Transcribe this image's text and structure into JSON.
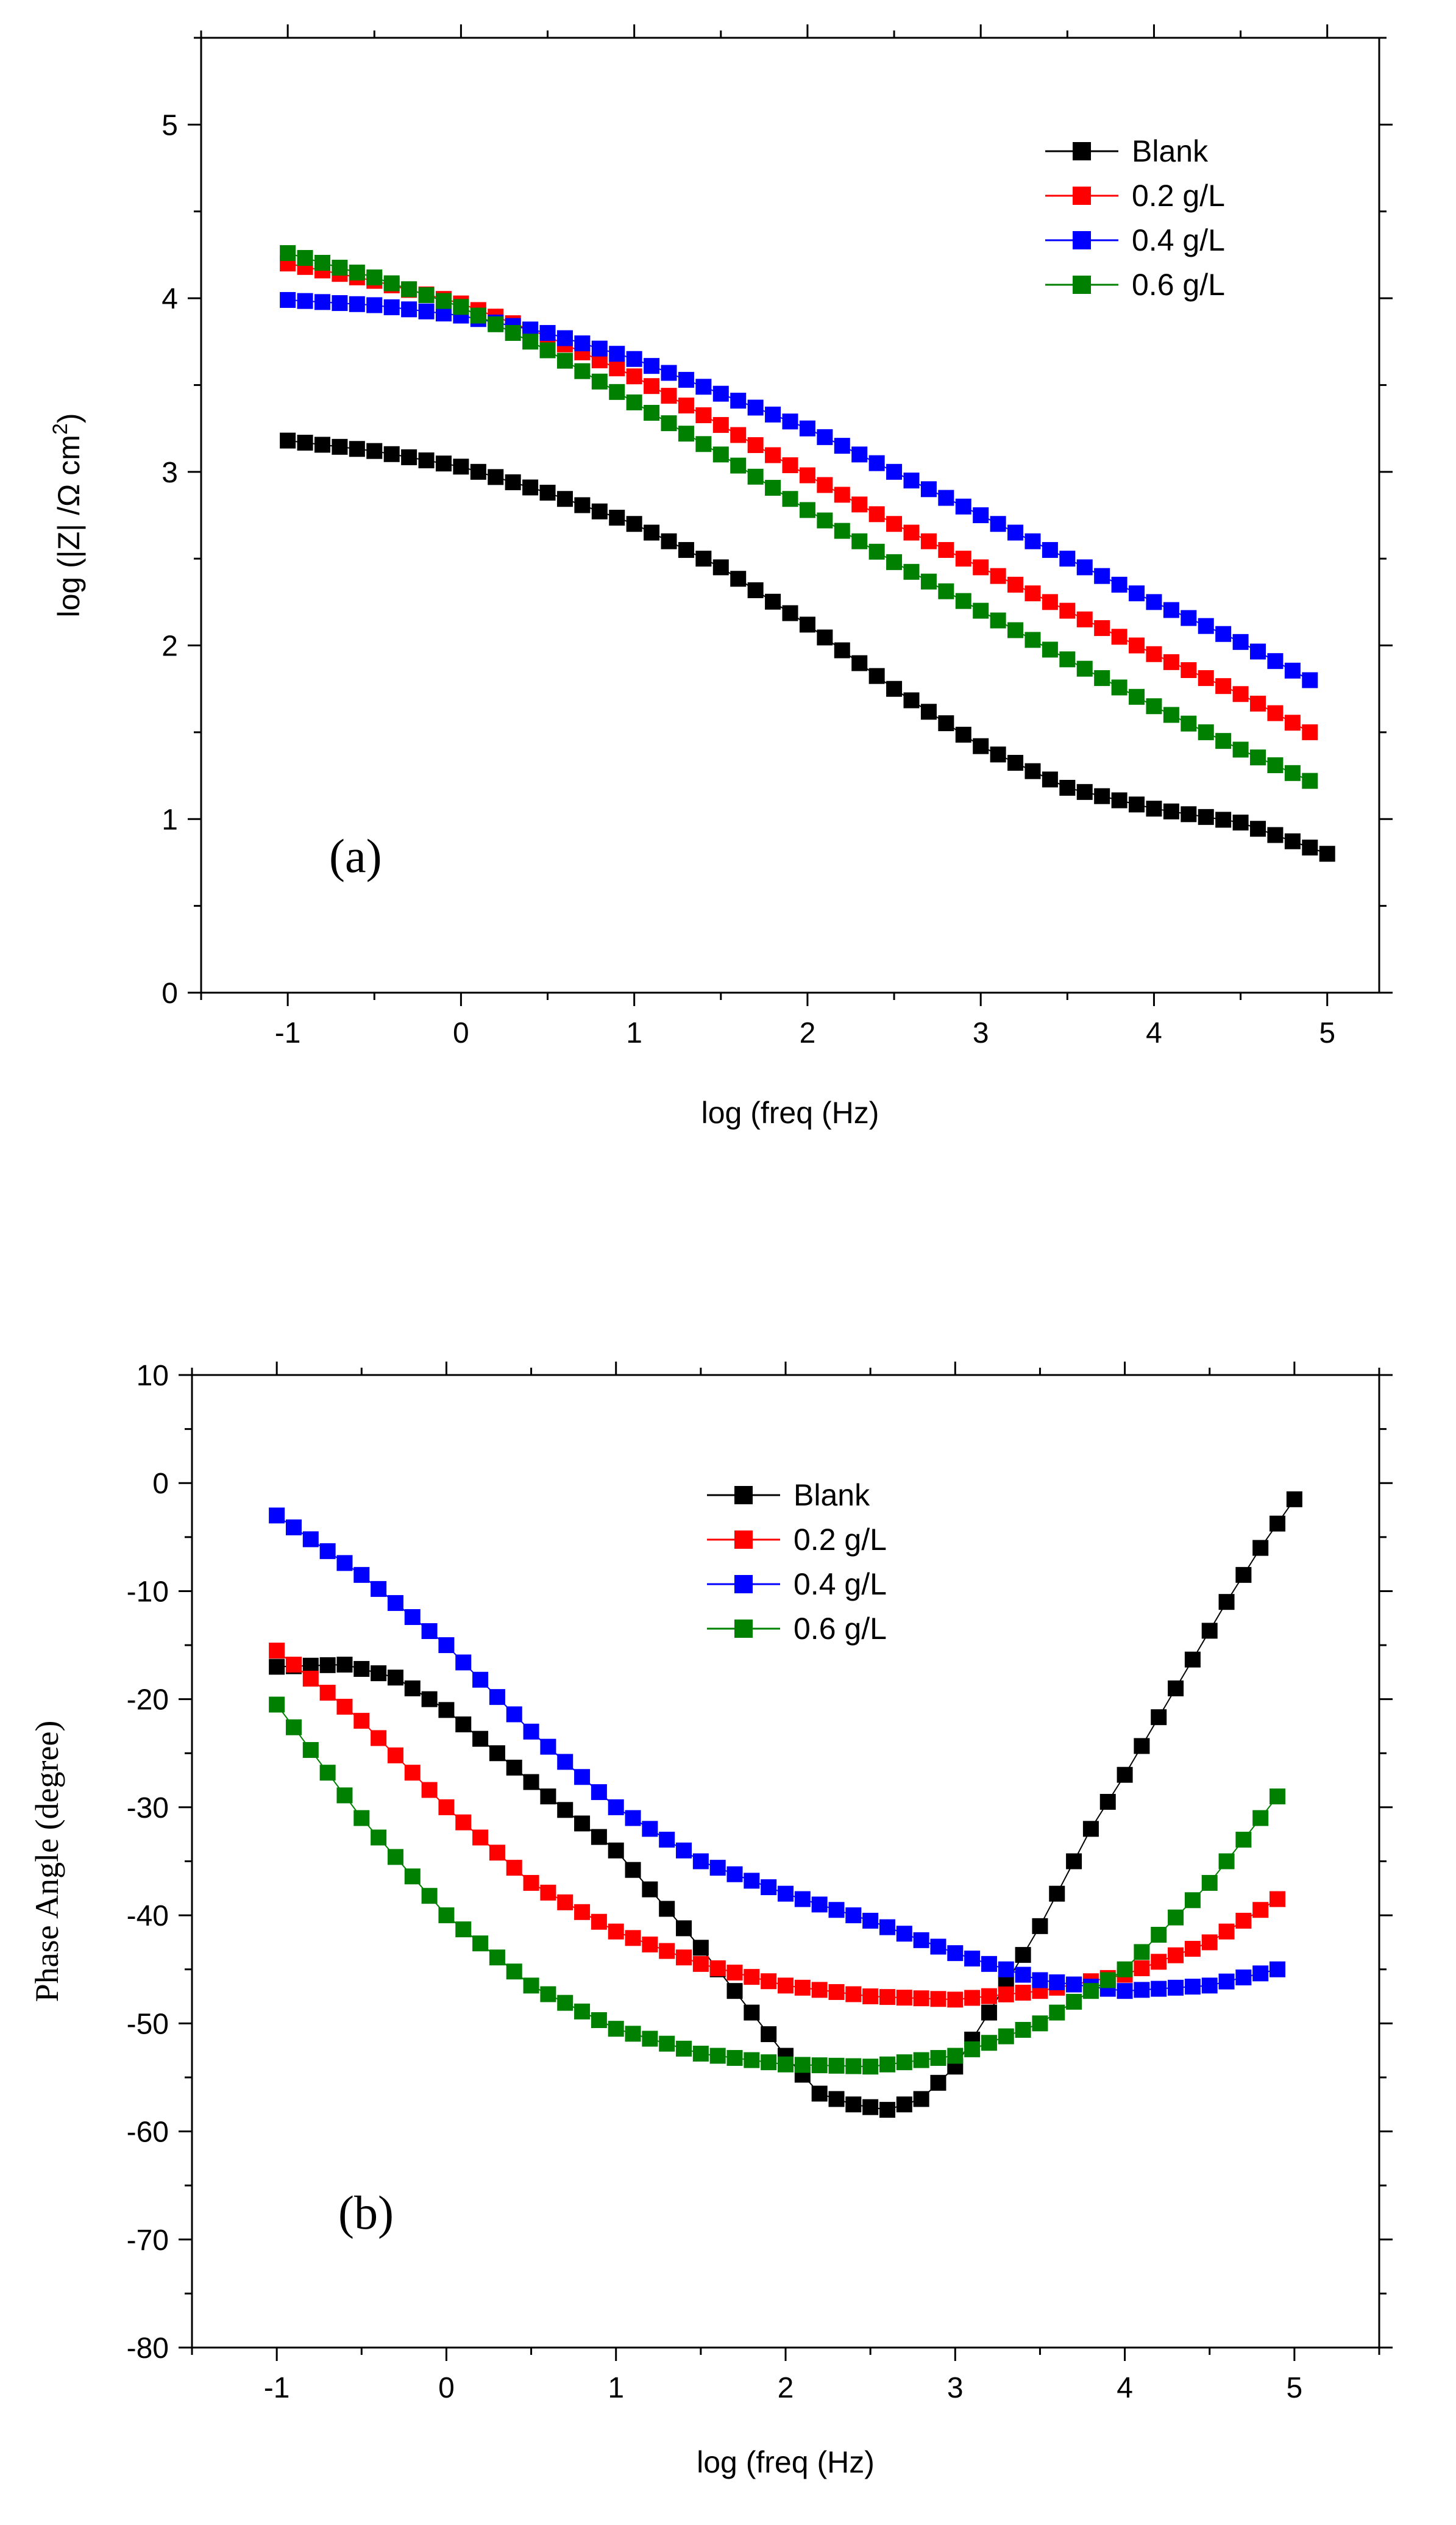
{
  "chart_data": [
    {
      "type": "scatter",
      "panel_label": "(a)",
      "xlabel": "log (freq (Hz)",
      "ylabel": "log (|Z| /Ω cm",
      "ylabel_sup": "2",
      "ylabel_end": ")",
      "xlim": [
        -1.5,
        5.3
      ],
      "ylim": [
        0,
        5.5
      ],
      "xticks": [
        -1,
        0,
        1,
        2,
        3,
        4,
        5
      ],
      "yticks": [
        0,
        1,
        2,
        3,
        4,
        5
      ],
      "xtick_labels": [
        "-1",
        "0",
        "1",
        "2",
        "3",
        "4",
        "5"
      ],
      "ytick_labels": [
        "0",
        "1",
        "2",
        "3",
        "4",
        "5"
      ],
      "legend_position": "top-right",
      "series": [
        {
          "name": "Blank",
          "color": "#000000",
          "points": [
            [
              -1.0,
              3.18
            ],
            [
              -0.5,
              3.12
            ],
            [
              0.0,
              3.03
            ],
            [
              0.5,
              2.88
            ],
            [
              1.0,
              2.7
            ],
            [
              1.5,
              2.45
            ],
            [
              2.0,
              2.12
            ],
            [
              2.5,
              1.75
            ],
            [
              3.0,
              1.42
            ],
            [
              3.5,
              1.18
            ],
            [
              4.0,
              1.06
            ],
            [
              4.5,
              0.98
            ],
            [
              5.0,
              0.8
            ]
          ]
        },
        {
          "name": "0.2 g/L",
          "color": "#ff0000",
          "points": [
            [
              -1.0,
              4.2
            ],
            [
              -0.5,
              4.1
            ],
            [
              0.0,
              3.97
            ],
            [
              0.5,
              3.78
            ],
            [
              1.0,
              3.55
            ],
            [
              1.5,
              3.27
            ],
            [
              2.0,
              2.98
            ],
            [
              2.5,
              2.7
            ],
            [
              3.0,
              2.45
            ],
            [
              3.5,
              2.2
            ],
            [
              4.0,
              1.95
            ],
            [
              4.5,
              1.72
            ],
            [
              4.9,
              1.5
            ]
          ]
        },
        {
          "name": "0.4 g/L",
          "color": "#0000ff",
          "points": [
            [
              -1.0,
              3.99
            ],
            [
              -0.5,
              3.96
            ],
            [
              0.0,
              3.9
            ],
            [
              0.5,
              3.8
            ],
            [
              1.0,
              3.65
            ],
            [
              1.5,
              3.45
            ],
            [
              2.0,
              3.25
            ],
            [
              2.5,
              3.0
            ],
            [
              3.0,
              2.75
            ],
            [
              3.5,
              2.5
            ],
            [
              4.0,
              2.25
            ],
            [
              4.5,
              2.02
            ],
            [
              4.9,
              1.8
            ]
          ]
        },
        {
          "name": "0.6 g/L",
          "color": "#008000",
          "points": [
            [
              -1.0,
              4.26
            ],
            [
              -0.5,
              4.12
            ],
            [
              0.0,
              3.95
            ],
            [
              0.5,
              3.7
            ],
            [
              1.0,
              3.4
            ],
            [
              1.5,
              3.1
            ],
            [
              2.0,
              2.78
            ],
            [
              2.5,
              2.48
            ],
            [
              3.0,
              2.2
            ],
            [
              3.5,
              1.92
            ],
            [
              4.0,
              1.65
            ],
            [
              4.5,
              1.4
            ],
            [
              4.9,
              1.22
            ]
          ]
        }
      ]
    },
    {
      "type": "scatter",
      "panel_label": "(b)",
      "xlabel": "log (freq (Hz)",
      "ylabel": "Phase Angle (degree)",
      "xlim": [
        -1.5,
        5.5
      ],
      "ylim": [
        -80,
        10
      ],
      "xticks": [
        -1,
        0,
        1,
        2,
        3,
        4,
        5
      ],
      "yticks": [
        10,
        0,
        -10,
        -20,
        -30,
        -40,
        -50,
        -60,
        -70,
        -80
      ],
      "xtick_labels": [
        "-1",
        "0",
        "1",
        "2",
        "3",
        "4",
        "5"
      ],
      "ytick_labels": [
        "10",
        "0",
        "-10",
        "-20",
        "-30",
        "-40",
        "-50",
        "-60",
        "-70",
        "-80"
      ],
      "legend_position": "top-center",
      "series": [
        {
          "name": "Blank",
          "color": "#000000",
          "points": [
            [
              -1.0,
              -17.0
            ],
            [
              -0.6,
              -16.8
            ],
            [
              -0.3,
              -18.0
            ],
            [
              0.0,
              -21.0
            ],
            [
              0.3,
              -25.0
            ],
            [
              0.6,
              -29.0
            ],
            [
              1.0,
              -34.0
            ],
            [
              1.5,
              -43.0
            ],
            [
              1.8,
              -49.0
            ],
            [
              2.0,
              -53.0
            ],
            [
              2.2,
              -56.5
            ],
            [
              2.4,
              -57.5
            ],
            [
              2.6,
              -58.0
            ],
            [
              2.8,
              -57.0
            ],
            [
              3.0,
              -54.0
            ],
            [
              3.2,
              -49.0
            ],
            [
              3.5,
              -41.0
            ],
            [
              3.8,
              -32.0
            ],
            [
              4.0,
              -27.0
            ],
            [
              4.3,
              -19.0
            ],
            [
              4.6,
              -11.0
            ],
            [
              4.8,
              -6.0
            ],
            [
              5.0,
              -1.5
            ]
          ]
        },
        {
          "name": "0.2 g/L",
          "color": "#ff0000",
          "points": [
            [
              -1.0,
              -15.5
            ],
            [
              -0.5,
              -22.0
            ],
            [
              0.0,
              -30.0
            ],
            [
              0.5,
              -37.0
            ],
            [
              1.0,
              -41.5
            ],
            [
              1.5,
              -44.5
            ],
            [
              2.0,
              -46.5
            ],
            [
              2.5,
              -47.5
            ],
            [
              3.0,
              -47.8
            ],
            [
              3.5,
              -47.0
            ],
            [
              4.0,
              -45.5
            ],
            [
              4.5,
              -42.5
            ],
            [
              4.9,
              -38.5
            ]
          ]
        },
        {
          "name": "0.4 g/L",
          "color": "#0000ff",
          "points": [
            [
              -1.0,
              -3.0
            ],
            [
              -0.5,
              -8.5
            ],
            [
              0.0,
              -15.0
            ],
            [
              0.5,
              -23.0
            ],
            [
              1.0,
              -30.0
            ],
            [
              1.5,
              -35.0
            ],
            [
              2.0,
              -38.0
            ],
            [
              2.5,
              -40.5
            ],
            [
              3.0,
              -43.5
            ],
            [
              3.5,
              -46.0
            ],
            [
              4.0,
              -47.0
            ],
            [
              4.5,
              -46.5
            ],
            [
              4.9,
              -45.0
            ]
          ]
        },
        {
          "name": "0.6 g/L",
          "color": "#008000",
          "points": [
            [
              -1.0,
              -20.5
            ],
            [
              -0.5,
              -31.0
            ],
            [
              0.0,
              -40.0
            ],
            [
              0.5,
              -46.5
            ],
            [
              1.0,
              -50.5
            ],
            [
              1.5,
              -52.8
            ],
            [
              2.0,
              -53.8
            ],
            [
              2.5,
              -54.0
            ],
            [
              3.0,
              -53.0
            ],
            [
              3.5,
              -50.0
            ],
            [
              4.0,
              -45.0
            ],
            [
              4.5,
              -37.0
            ],
            [
              4.9,
              -29.0
            ]
          ]
        }
      ]
    }
  ]
}
